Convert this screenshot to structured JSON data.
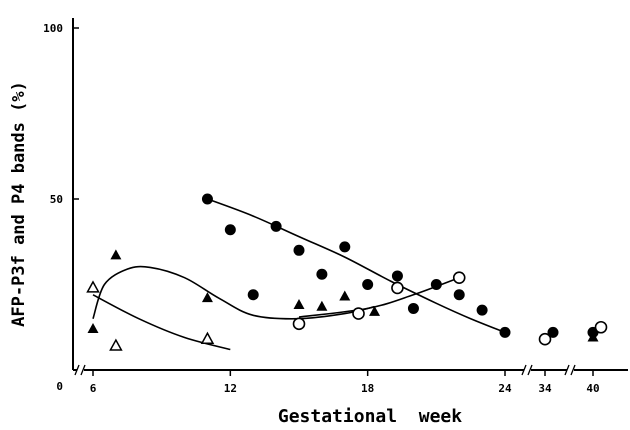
{
  "chart_data": {
    "type": "scatter",
    "title": "",
    "xlabel": "Gestational  week",
    "ylabel": "AFP-P3f and P4 bands (%)",
    "ylim": [
      0,
      100
    ],
    "y_ticks": [
      "0",
      "50",
      "100"
    ],
    "x_ticks": [
      "6",
      "12",
      "18",
      "24",
      "34",
      "40"
    ],
    "x_axis_breaks": [
      "5-6",
      "24-34",
      "34-40"
    ],
    "grid": false,
    "legend": "none",
    "series": [
      {
        "marker": "filled-circle",
        "points": [
          {
            "x": 11,
            "y": 50
          },
          {
            "x": 12,
            "y": 41
          },
          {
            "x": 13,
            "y": 22
          },
          {
            "x": 14,
            "y": 42
          },
          {
            "x": 15,
            "y": 35
          },
          {
            "x": 16,
            "y": 28
          },
          {
            "x": 17,
            "y": 36
          },
          {
            "x": 18,
            "y": 25
          },
          {
            "x": 19.3,
            "y": 27.5
          },
          {
            "x": 20,
            "y": 18
          },
          {
            "x": 21,
            "y": 25
          },
          {
            "x": 22,
            "y": 22
          },
          {
            "x": 23,
            "y": 17.5
          },
          {
            "x": 24,
            "y": 11
          },
          {
            "x": 35,
            "y": 11
          },
          {
            "x": 40,
            "y": 11
          }
        ],
        "fit_curve": [
          [
            11,
            50
          ],
          [
            13,
            45
          ],
          [
            15,
            39
          ],
          [
            17,
            33
          ],
          [
            19,
            26
          ],
          [
            21,
            19.5
          ],
          [
            22.5,
            15
          ],
          [
            24,
            11
          ]
        ]
      },
      {
        "marker": "open-circle",
        "points": [
          {
            "x": 15,
            "y": 13.5
          },
          {
            "x": 17.6,
            "y": 16.5
          },
          {
            "x": 19.3,
            "y": 24
          },
          {
            "x": 22,
            "y": 27
          },
          {
            "x": 34,
            "y": 9
          },
          {
            "x": 41,
            "y": 12.5
          }
        ]
      },
      {
        "marker": "filled-triangle",
        "points": [
          {
            "x": 6,
            "y": 12
          },
          {
            "x": 7,
            "y": 33.5
          },
          {
            "x": 11,
            "y": 21
          },
          {
            "x": 15,
            "y": 19
          },
          {
            "x": 16,
            "y": 18.5
          },
          {
            "x": 17,
            "y": 21.5
          },
          {
            "x": 18.3,
            "y": 17
          },
          {
            "x": 40,
            "y": 9.5
          }
        ],
        "fit_curve": [
          [
            6,
            15
          ],
          [
            6.5,
            25
          ],
          [
            7.5,
            29.5
          ],
          [
            8.5,
            30
          ],
          [
            10,
            27
          ],
          [
            11.5,
            21
          ],
          [
            13,
            16
          ],
          [
            15,
            15
          ],
          [
            17,
            16.5
          ],
          [
            18.3,
            18.5
          ]
        ]
      },
      {
        "marker": "open-triangle",
        "points": [
          {
            "x": 6,
            "y": 24
          },
          {
            "x": 7,
            "y": 7
          },
          {
            "x": 11,
            "y": 9
          }
        ],
        "fit_curve": [
          [
            6,
            22
          ],
          [
            8,
            15
          ],
          [
            10,
            9.5
          ],
          [
            12,
            6
          ]
        ]
      },
      {
        "marker": "none",
        "fit_curve": [
          [
            15,
            15.5
          ],
          [
            18,
            18
          ],
          [
            20,
            22
          ],
          [
            22,
            27
          ]
        ]
      }
    ]
  }
}
